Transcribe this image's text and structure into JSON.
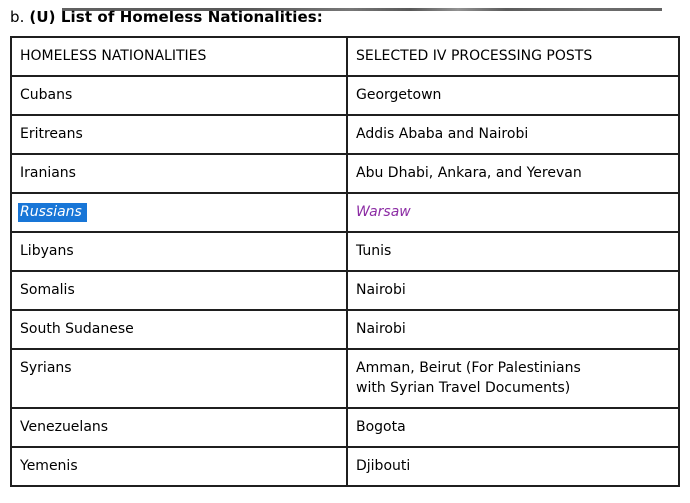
{
  "heading": {
    "prefix": "b.",
    "main": "(U) List of Homeless Nationalities:"
  },
  "table": {
    "columns": [
      "HOMELESS NATIONALITIES",
      "SELECTED IV PROCESSING POSTS"
    ],
    "rows": [
      {
        "nationality": "Cubans",
        "posts": "Georgetown"
      },
      {
        "nationality": "Eritreans",
        "posts": "Addis Ababa and Nairobi"
      },
      {
        "nationality": "Iranians",
        "posts": "Abu Dhabi, Ankara, and Yerevan"
      },
      {
        "nationality": "Russians",
        "posts": "Warsaw",
        "nationality_selected": true,
        "posts_accent": true
      },
      {
        "nationality": "Libyans",
        "posts": "Tunis"
      },
      {
        "nationality": "Somalis",
        "posts": "Nairobi"
      },
      {
        "nationality": "South Sudanese",
        "posts": "Nairobi"
      },
      {
        "nationality": "Syrians",
        "posts": "Amman, Beirut (For Palestinians with Syrian Travel Documents)"
      },
      {
        "nationality": "Venezuelans",
        "posts": "Bogota"
      },
      {
        "nationality": "Yemenis",
        "posts": "Djibouti"
      }
    ],
    "colors": {
      "selection_background": "#1876d7",
      "selection_text": "#ffffff",
      "accent_text": "#8c2ca4",
      "border": "#1f1f1f"
    }
  }
}
